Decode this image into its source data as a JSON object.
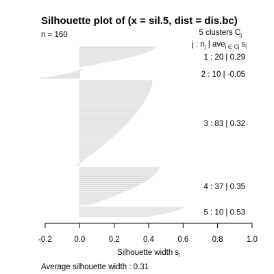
{
  "chart_data": {
    "type": "bar",
    "orientation": "horizontal",
    "title": "Silhouette plot of (x = sil.5, dist = dis.bc)",
    "n_label": "n = 160",
    "clusters_label": "5  clusters  C",
    "clusters_label_sub": "j",
    "column_header": "j :  n",
    "column_header_sub": "j",
    "column_header_mid": " | ave",
    "column_header_sub2": "i ∈ Cj",
    "column_header_tail": "  s",
    "column_header_sub3": "i",
    "xlabel": "Silhouette width  s",
    "xlabel_sub": "i",
    "xlim": [
      -0.2,
      1.0
    ],
    "xticks": [
      -0.2,
      0.0,
      0.2,
      0.4,
      0.6,
      0.8,
      1.0
    ],
    "xtick_labels": [
      "-0.2",
      "0.0",
      "0.2",
      "0.4",
      "0.6",
      "0.8",
      "1.0"
    ],
    "bar_color": "#d9d9d9",
    "average_label": "Average silhouette width :  0.31",
    "clusters": [
      {
        "label": "1 :   20  |  0.29",
        "j": 1,
        "n": 20,
        "ave": 0.29,
        "max": 0.44,
        "min": 0.02
      },
      {
        "label": "2 :   10  |  -0.05",
        "j": 2,
        "n": 10,
        "ave": -0.05,
        "max": 0.01,
        "min": -0.23
      },
      {
        "label": "3 :   83  |  0.32",
        "j": 3,
        "n": 83,
        "ave": 0.32,
        "max": 0.42,
        "min": -0.02
      },
      {
        "label": "4 :   37  |  0.35",
        "j": 4,
        "n": 37,
        "ave": 0.35,
        "max": 0.46,
        "min": 0.06
      },
      {
        "label": "5 :   10  |  0.53",
        "j": 5,
        "n": 10,
        "ave": 0.53,
        "max": 0.6,
        "min": 0.4
      }
    ]
  }
}
